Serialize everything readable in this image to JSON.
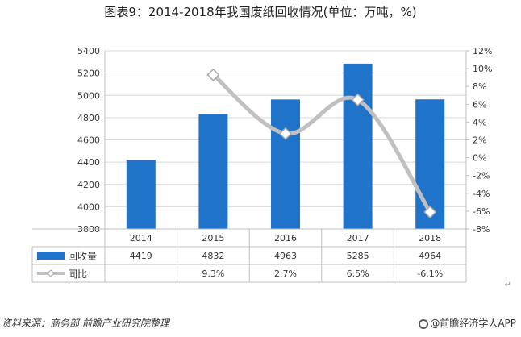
{
  "title": "图表9：2014-2018年我国废纸回收情况(单位：万吨，%)",
  "source_text": "资料来源：商务部 前瞻产业研究院整理",
  "brand_text": "@前瞻经济学人APP",
  "return_mark": "↵",
  "colors": {
    "bar": "#1f73c9",
    "line": "#c0c0c0",
    "grid": "#d9d9d9",
    "axis": "#bfbfbf",
    "text": "#333333"
  },
  "chart_data": {
    "type": "bar",
    "categories": [
      "2014",
      "2015",
      "2016",
      "2017",
      "2018"
    ],
    "series": [
      {
        "name": "回收量",
        "type": "bar",
        "axis": "left",
        "values": [
          4419,
          4832,
          4963,
          5285,
          4964
        ]
      },
      {
        "name": "同比",
        "type": "line",
        "axis": "right",
        "values": [
          null,
          9.3,
          2.7,
          6.5,
          -6.1
        ]
      }
    ],
    "table_rows": [
      {
        "series": "回收量",
        "cells": [
          "4419",
          "4832",
          "4963",
          "5285",
          "4964"
        ]
      },
      {
        "series": "同比",
        "cells": [
          "",
          "9.3%",
          "2.7%",
          "6.5%",
          "-6.1%"
        ]
      }
    ],
    "y_left": {
      "min": 3800,
      "max": 5400,
      "ticks": [
        3800,
        4000,
        4200,
        4400,
        4600,
        4800,
        5000,
        5200,
        5400
      ]
    },
    "y_right": {
      "min": -8,
      "max": 12,
      "ticks": [
        "-8%",
        "-6%",
        "-4%",
        "-2%",
        "0%",
        "2%",
        "4%",
        "6%",
        "8%",
        "10%",
        "12%"
      ],
      "tick_values": [
        -8,
        -6,
        -4,
        -2,
        0,
        2,
        4,
        6,
        8,
        10,
        12
      ]
    },
    "legend": "data-table"
  }
}
